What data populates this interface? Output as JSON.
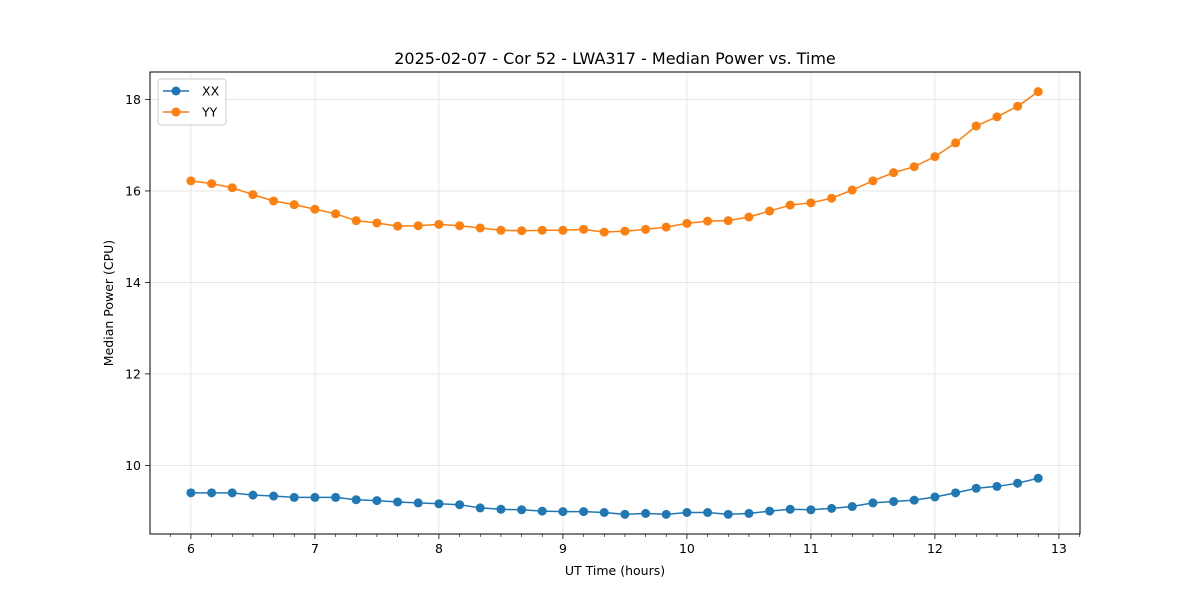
{
  "chart_data": {
    "type": "line",
    "title": "2025-02-07 - Cor 52 - LWA317 - Median Power vs. Time",
    "xlabel": "UT Time (hours)",
    "ylabel": "Median Power (CPU)",
    "xlim": [
      5.67,
      13.17
    ],
    "ylim": [
      8.5,
      18.6
    ],
    "x_ticks": [
      "6",
      "7",
      "8",
      "9",
      "10",
      "11",
      "12",
      "13"
    ],
    "y_ticks": [
      "10",
      "12",
      "14",
      "16",
      "18"
    ],
    "grid": true,
    "legend_position": "top-left",
    "x": [
      6.0,
      6.167,
      6.333,
      6.5,
      6.667,
      6.833,
      7.0,
      7.167,
      7.333,
      7.5,
      7.667,
      7.833,
      8.0,
      8.167,
      8.333,
      8.5,
      8.667,
      8.833,
      9.0,
      9.167,
      9.333,
      9.5,
      9.667,
      9.833,
      10.0,
      10.167,
      10.333,
      10.5,
      10.667,
      10.833,
      11.0,
      11.167,
      11.333,
      11.5,
      11.667,
      11.833,
      12.0,
      12.167,
      12.333,
      12.5,
      12.667,
      12.833
    ],
    "series": [
      {
        "name": "XX",
        "color": "#1f77b4",
        "values": [
          9.4,
          9.4,
          9.4,
          9.35,
          9.33,
          9.3,
          9.3,
          9.3,
          9.25,
          9.23,
          9.2,
          9.18,
          9.16,
          9.14,
          9.07,
          9.04,
          9.03,
          9.0,
          8.99,
          8.99,
          8.97,
          8.93,
          8.95,
          8.93,
          8.97,
          8.97,
          8.93,
          8.95,
          9.0,
          9.04,
          9.03,
          9.06,
          9.1,
          9.18,
          9.21,
          9.24,
          9.31,
          9.4,
          9.5,
          9.54,
          9.61,
          9.72
        ]
      },
      {
        "name": "YY",
        "color": "#ff7f0e",
        "values": [
          16.22,
          16.16,
          16.07,
          15.92,
          15.78,
          15.7,
          15.6,
          15.5,
          15.35,
          15.3,
          15.23,
          15.24,
          15.27,
          15.24,
          15.19,
          15.14,
          15.13,
          15.14,
          15.14,
          15.16,
          15.1,
          15.12,
          15.16,
          15.21,
          15.29,
          15.34,
          15.35,
          15.43,
          15.56,
          15.69,
          15.74,
          15.84,
          16.02,
          16.22,
          16.4,
          16.53,
          16.75,
          17.05,
          17.42,
          17.62,
          17.85,
          18.17
        ]
      }
    ]
  }
}
